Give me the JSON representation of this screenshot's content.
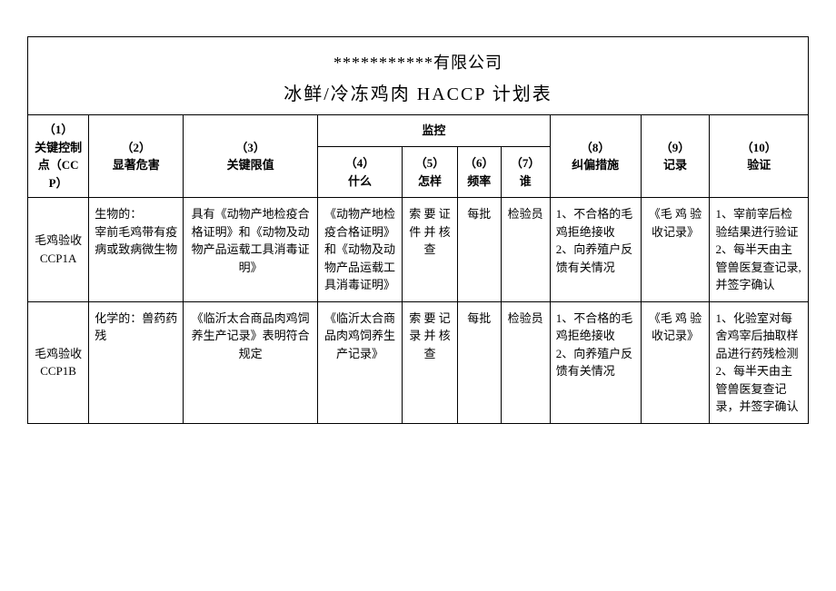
{
  "header": {
    "company": "***********有限公司",
    "title": "冰鲜/冷冻鸡肉 HACCP 计划表"
  },
  "columns": {
    "c1": "（1）\n关键控制点（CCP）",
    "c2": "（2）\n显著危害",
    "c3": "（3）\n关键限值",
    "monitor": "监控",
    "c4": "（4）\n什么",
    "c5": "（5）\n怎样",
    "c6": "（6）\n频率",
    "c7": "（7）\n谁",
    "c8": "（8）\n纠偏措施",
    "c9": "（9）\n记录",
    "c10": "（10）\n验证"
  },
  "rows": [
    {
      "ccp": "毛鸡验收CCP1A",
      "hazard": "生物的：\n宰前毛鸡带有疫病或致病微生物",
      "limit": "具有《动物产地检疫合格证明》和《动物及动物产品运载工具消毒证明》",
      "what": "《动物产地检疫合格证明》和《动物及动物产品运载工具消毒证明》",
      "how": "索 要 证件 并 核查",
      "freq": "每批",
      "who": "检验员",
      "corr": "1、不合格的毛鸡拒绝接收\n2、向养殖户反馈有关情况",
      "record": "《毛 鸡 验收记录》",
      "verify": "1、宰前宰后检验结果进行验证\n2、每半天由主管兽医复查记录,并签字确认"
    },
    {
      "ccp": "毛鸡验收CCP1B",
      "hazard": "化学的：兽药药残",
      "limit": "《临沂太合商品肉鸡饲养生产记录》表明符合规定",
      "what": "《临沂太合商品肉鸡饲养生产记录》",
      "how": "索 要 记录 并 核查",
      "freq": "每批",
      "who": "检验员",
      "corr": "1、不合格的毛鸡拒绝接收\n2、向养殖户反馈有关情况",
      "record": "《毛 鸡 验收记录》",
      "verify": "1、化验室对每舍鸡宰后抽取样品进行药残检测\n2、每半天由主管兽医复查记录，并签字确认"
    }
  ],
  "widths": {
    "c1": 62,
    "c2": 96,
    "c3": 136,
    "c4": 86,
    "c5": 56,
    "c6": 44,
    "c7": 50,
    "c8": 92,
    "c9": 70,
    "c10": 100
  }
}
